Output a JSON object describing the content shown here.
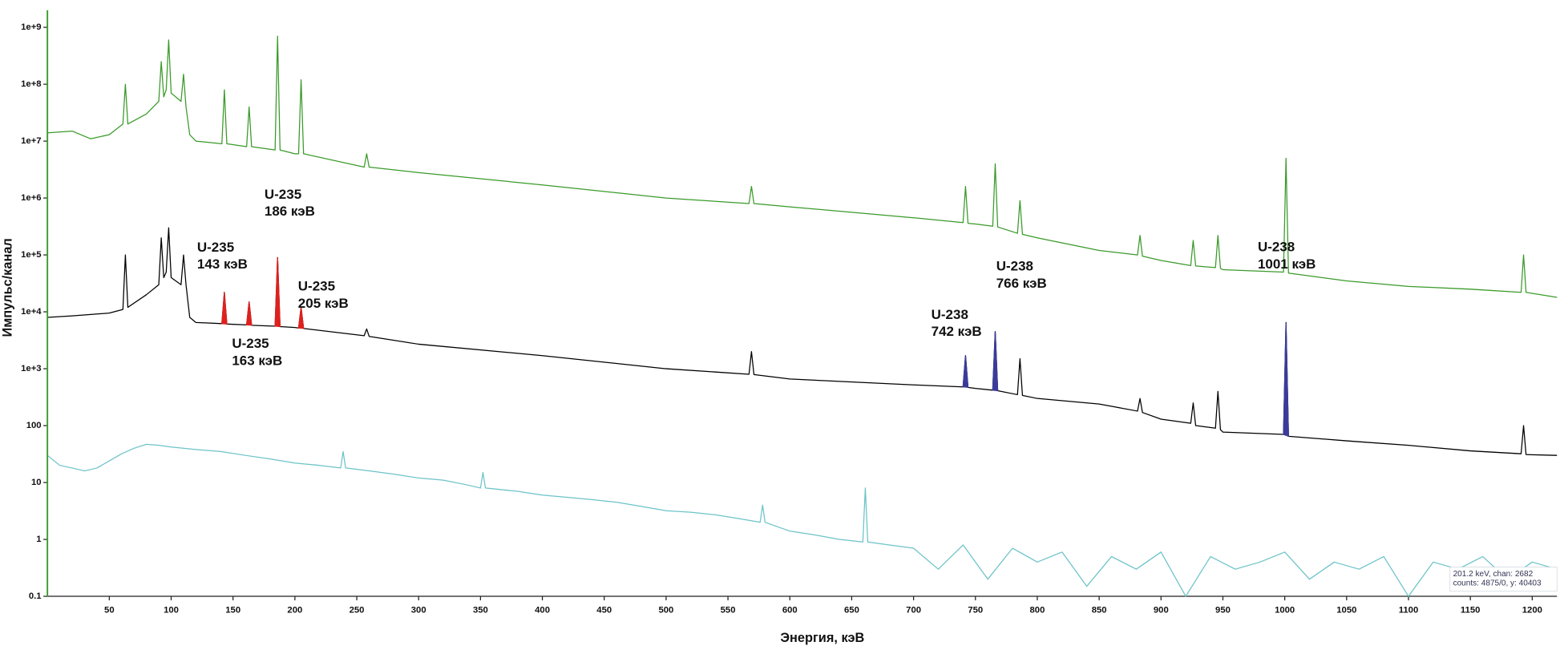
{
  "chart_data": {
    "type": "line",
    "x_label": "Энергия, кэВ",
    "y_label": "Импульс/канал",
    "log_y": true,
    "xlim": [
      0,
      1220
    ],
    "ylim": [
      0.1,
      2000000000
    ],
    "xticks": [
      50,
      100,
      150,
      200,
      250,
      300,
      350,
      400,
      450,
      500,
      550,
      600,
      650,
      700,
      750,
      800,
      850,
      900,
      950,
      1000,
      1050,
      1100,
      1150,
      1200
    ],
    "yticks": [
      0.1,
      1,
      10,
      100,
      {
        "value": 1000,
        "label": "1e+3"
      },
      {
        "value": 10000,
        "label": "1e+4"
      },
      {
        "value": 100000,
        "label": "1e+5"
      },
      {
        "value": 1000000,
        "label": "1e+6"
      },
      {
        "value": 10000000,
        "label": "1e+7"
      },
      {
        "value": 100000000,
        "label": "1e+8"
      },
      {
        "value": 1000000000,
        "label": "1e+9"
      }
    ],
    "series": [
      {
        "color": "#3a9a2a",
        "x": [
          0,
          20,
          35,
          50,
          61,
          63,
          65,
          80,
          90,
          92,
          94,
          96,
          98,
          100,
          108,
          110,
          112,
          115,
          120,
          141,
          143,
          145,
          161,
          163,
          165,
          184,
          186,
          188,
          200,
          203,
          205,
          207,
          256,
          258,
          260,
          300,
          400,
          500,
          567,
          569,
          571,
          600,
          700,
          740,
          742,
          744,
          750,
          764,
          766,
          768,
          784,
          786,
          788,
          800,
          850,
          881,
          883,
          885,
          900,
          924,
          926,
          928,
          944,
          946,
          948,
          950,
          999,
          1001,
          1003,
          1050,
          1100,
          1150,
          1191,
          1193,
          1195,
          1220
        ],
        "values": [
          14000000,
          15000000,
          11000000,
          13000000,
          20000000,
          100000000,
          20000000,
          30000000,
          50000000,
          250000000,
          60000000,
          80000000,
          600000000,
          70000000,
          50000000,
          150000000,
          40000000,
          13000000,
          10000000,
          9000000,
          80000000,
          9000000,
          8000000,
          40000000,
          8000000,
          7000000,
          700000000,
          7000000,
          6000000,
          6000000,
          120000000,
          6000000,
          3500000,
          6000000,
          3500000,
          2800000,
          1700000,
          1000000,
          800000,
          1600000,
          800000,
          700000,
          450000,
          370000,
          1600000,
          360000,
          350000,
          320000,
          4000000,
          310000,
          240000,
          900000,
          230000,
          200000,
          120000,
          100000,
          220000,
          95000,
          80000,
          65000,
          180000,
          64000,
          60000,
          220000,
          58000,
          55000,
          50000,
          5000000,
          48000,
          35000,
          28000,
          25000,
          22000,
          100000,
          22000,
          18000
        ]
      },
      {
        "color": "#000000",
        "x": [
          0,
          20,
          35,
          50,
          61,
          63,
          65,
          80,
          90,
          92,
          94,
          96,
          98,
          100,
          108,
          110,
          112,
          115,
          120,
          141,
          143,
          145,
          161,
          163,
          165,
          184,
          186,
          188,
          200,
          203,
          205,
          207,
          256,
          258,
          260,
          300,
          400,
          500,
          567,
          569,
          571,
          600,
          700,
          740,
          742,
          744,
          750,
          764,
          766,
          768,
          784,
          786,
          788,
          800,
          850,
          881,
          883,
          885,
          900,
          924,
          926,
          928,
          944,
          946,
          948,
          950,
          999,
          1001,
          1003,
          1050,
          1100,
          1150,
          1191,
          1193,
          1195,
          1220
        ],
        "values": [
          8000,
          8500,
          9000,
          9500,
          11000,
          100000,
          12000,
          20000,
          30000,
          200000,
          40000,
          50000,
          300000,
          40000,
          30000,
          100000,
          30000,
          8000,
          6500,
          6200,
          22000,
          6100,
          5900,
          15000,
          5800,
          5600,
          90000,
          5500,
          5300,
          5200,
          12000,
          5100,
          3800,
          5000,
          3700,
          2700,
          1700,
          1000,
          800,
          2000,
          790,
          660,
          520,
          480,
          1700,
          470,
          450,
          420,
          4500,
          410,
          350,
          1500,
          340,
          300,
          240,
          180,
          300,
          170,
          130,
          110,
          250,
          100,
          90,
          400,
          85,
          77,
          70,
          6500,
          65,
          54,
          45,
          36,
          32,
          100,
          31,
          30
        ]
      },
      {
        "color": "#6cc3c8",
        "x": [
          0,
          10,
          20,
          30,
          40,
          50,
          60,
          70,
          80,
          90,
          100,
          120,
          140,
          160,
          180,
          200,
          220,
          237,
          239,
          241,
          260,
          280,
          300,
          320,
          340,
          350,
          352,
          354,
          380,
          400,
          420,
          440,
          460,
          480,
          500,
          520,
          540,
          560,
          576,
          578,
          580,
          600,
          620,
          640,
          659,
          661,
          663,
          680,
          700,
          720,
          740,
          760,
          780,
          800,
          820,
          840,
          860,
          880,
          900,
          920,
          940,
          960,
          980,
          1000,
          1020,
          1040,
          1060,
          1080,
          1100,
          1120,
          1140,
          1160,
          1180,
          1200,
          1220
        ],
        "values": [
          30,
          20,
          18,
          16,
          18,
          24,
          32,
          40,
          47,
          45,
          42,
          38,
          35,
          30,
          26,
          22,
          20,
          18,
          35,
          18,
          16,
          14,
          12,
          11,
          9,
          8,
          15,
          8,
          7,
          6,
          5.5,
          5,
          4.5,
          3.8,
          3.2,
          3,
          2.7,
          2.3,
          2,
          4,
          2,
          1.4,
          1.2,
          1,
          0.9,
          8,
          0.9,
          0.8,
          0.7,
          0.3,
          0.8,
          0.2,
          0.7,
          0.4,
          0.6,
          0.15,
          0.5,
          0.3,
          0.6,
          0.1,
          0.5,
          0.3,
          0.4,
          0.6,
          0.2,
          0.4,
          0.3,
          0.5,
          0.1,
          0.4,
          0.3,
          0.5,
          0.2,
          0.4,
          0.3
        ]
      }
    ],
    "annotations": [
      {
        "lines": [
          "U-235",
          "143 кэВ"
        ],
        "x": 143,
        "color": "#e0201c"
      },
      {
        "lines": [
          "U-235",
          "163 кэВ"
        ],
        "x": 163,
        "color": "#e0201c"
      },
      {
        "lines": [
          "U-235",
          "186 кэВ"
        ],
        "x": 186,
        "color": "#e0201c"
      },
      {
        "lines": [
          "U-235",
          "205 кэВ"
        ],
        "x": 205,
        "color": "#e0201c"
      },
      {
        "lines": [
          "U-238",
          "742 кэВ"
        ],
        "x": 742,
        "color": "#3b3b9b"
      },
      {
        "lines": [
          "U-238",
          "766 кэВ"
        ],
        "x": 766,
        "color": "#3b3b9b"
      },
      {
        "lines": [
          "U-238",
          "1001 кэВ"
        ],
        "x": 1001,
        "color": "#3b3b9b"
      }
    ],
    "status_lines": [
      "201.2 keV, chan: 2682",
      "counts: 4875/0, y: 40403"
    ]
  }
}
